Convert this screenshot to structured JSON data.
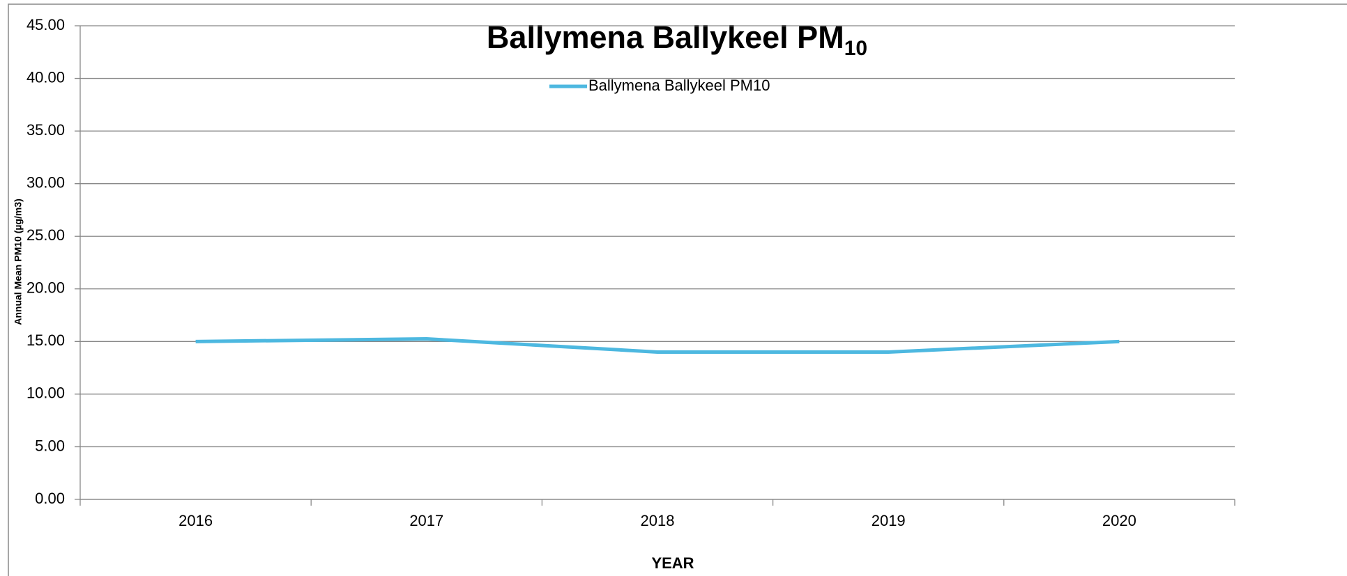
{
  "chart_data": {
    "type": "line",
    "title": "Ballymena Ballykeel PM",
    "title_subscript": "10",
    "categories": [
      "2016",
      "2017",
      "2018",
      "2019",
      "2020"
    ],
    "series": [
      {
        "name": "Ballymena Ballykeel PM10",
        "color": "#4db8e0",
        "values": [
          15.0,
          15.25,
          14.0,
          14.0,
          15.0
        ]
      }
    ],
    "x_label": "YEAR",
    "y_label": "Annual Mean PM10 (µg/m3)",
    "ylim": [
      0,
      45
    ],
    "yticks": [
      {
        "value": 0,
        "label": "0.00"
      },
      {
        "value": 5,
        "label": "5.00"
      },
      {
        "value": 10,
        "label": "10.00"
      },
      {
        "value": 15,
        "label": "15.00"
      },
      {
        "value": 20,
        "label": "20.00"
      },
      {
        "value": 25,
        "label": "25.00"
      },
      {
        "value": 30,
        "label": "30.00"
      },
      {
        "value": 35,
        "label": "35.00"
      },
      {
        "value": 40,
        "label": "40.00"
      },
      {
        "value": 45,
        "label": "45.00"
      }
    ],
    "grid": true,
    "legend": "top"
  }
}
